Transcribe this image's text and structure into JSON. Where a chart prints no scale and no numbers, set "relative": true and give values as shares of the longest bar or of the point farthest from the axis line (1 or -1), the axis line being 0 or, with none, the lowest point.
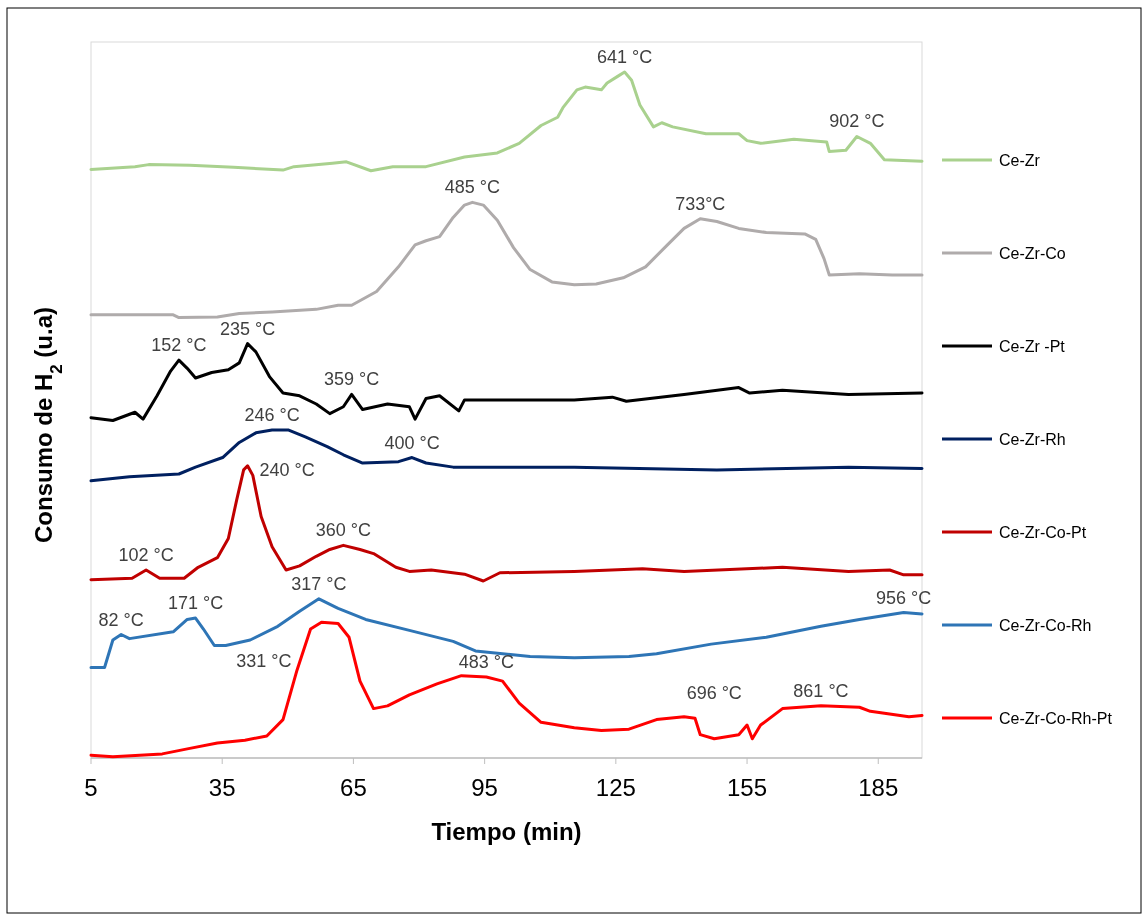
{
  "chart_data": {
    "type": "line",
    "relative": true,
    "xlabel": "Tiempo (min)",
    "ylabel": "Consumo de H$_{2}$ (u.a)",
    "xlim": [
      5,
      195
    ],
    "xticks": [
      5,
      35,
      65,
      95,
      125,
      155,
      185
    ],
    "grid": false,
    "legend": "right",
    "marker": "none",
    "line_style": "solid",
    "series": [
      {
        "name": "Ce-Zr",
        "color": "#a9d18e",
        "x": [
          5,
          15.05,
          18.19,
          27.6,
          37.6,
          48.9,
          51.4,
          60.2,
          63.4,
          69,
          74,
          81.6,
          90.4,
          97.9,
          102.9,
          107.9,
          111.7,
          112.9,
          116.1,
          118,
          121.7,
          123,
          125.5,
          127,
          128.6,
          130.5,
          133.6,
          135.5,
          138,
          145.6,
          153.1,
          155,
          158.1,
          165.7,
          173.2,
          173.8,
          177.6,
          180.1,
          183.2,
          186.4,
          195
        ],
        "values": [
          0.858,
          0.862,
          0.865,
          0.864,
          0.861,
          0.857,
          0.862,
          0.867,
          0.869,
          0.856,
          0.862,
          0.862,
          0.876,
          0.882,
          0.896,
          0.922,
          0.934,
          0.948,
          0.974,
          0.978,
          0.974,
          0.984,
          0.994,
          1.0,
          0.988,
          0.952,
          0.92,
          0.926,
          0.92,
          0.91,
          0.91,
          0.9,
          0.896,
          0.902,
          0.898,
          0.884,
          0.886,
          0.906,
          0.896,
          0.872,
          0.87
        ]
      },
      {
        "name": "Ce-Zr-Co",
        "color": "#afabab",
        "x": [
          5,
          23.8,
          25.1,
          33.9,
          38.9,
          46.4,
          56.5,
          61.5,
          64.6,
          70.3,
          75.3,
          79.1,
          81.6,
          84.7,
          87.8,
          90.4,
          92.2,
          94.7,
          97.9,
          101.6,
          105.4,
          110.4,
          115.5,
          120.5,
          126.7,
          131.8,
          136.8,
          140.6,
          144.3,
          148.1,
          153.1,
          159.4,
          168.2,
          170.7,
          172.6,
          173.8,
          180.7,
          188.2,
          195
        ],
        "values": [
          0.646,
          0.646,
          0.642,
          0.643,
          0.648,
          0.65,
          0.654,
          0.66,
          0.66,
          0.68,
          0.716,
          0.748,
          0.754,
          0.76,
          0.788,
          0.806,
          0.81,
          0.806,
          0.784,
          0.744,
          0.712,
          0.694,
          0.69,
          0.691,
          0.7,
          0.716,
          0.748,
          0.772,
          0.786,
          0.782,
          0.772,
          0.766,
          0.764,
          0.756,
          0.728,
          0.704,
          0.706,
          0.704,
          0.704
        ]
      },
      {
        "name": "Ce-Zr -Pt",
        "color": "#000000",
        "x": [
          5,
          10,
          15.05,
          16.9,
          20.1,
          23.2,
          25.1,
          27,
          28.9,
          32.6,
          36.4,
          38.9,
          40.8,
          42.7,
          45.8,
          48.9,
          52.7,
          56.5,
          59.6,
          62.7,
          64.6,
          67.1,
          72.8,
          77.8,
          79.1,
          81.6,
          84.7,
          89.1,
          90.4,
          102.9,
          115.5,
          124.2,
          127.4,
          140.6,
          153.1,
          155.6,
          163.1,
          178.2,
          195
        ],
        "values": [
          0.496,
          0.492,
          0.504,
          0.494,
          0.528,
          0.564,
          0.58,
          0.568,
          0.554,
          0.562,
          0.566,
          0.576,
          0.604,
          0.592,
          0.556,
          0.532,
          0.528,
          0.516,
          0.502,
          0.512,
          0.53,
          0.508,
          0.516,
          0.512,
          0.494,
          0.524,
          0.528,
          0.506,
          0.522,
          0.522,
          0.522,
          0.526,
          0.52,
          0.53,
          0.54,
          0.532,
          0.536,
          0.53,
          0.532
        ]
      },
      {
        "name": "Ce-Zr-Rh",
        "color": "#002060",
        "x": [
          5,
          13.8,
          25.1,
          28.9,
          35.1,
          38.9,
          42.7,
          46.4,
          50.2,
          54,
          59,
          62.7,
          67.1,
          75.3,
          78.4,
          81.6,
          87.8,
          115.5,
          148.1,
          178.2,
          195
        ],
        "values": [
          0.404,
          0.41,
          0.414,
          0.424,
          0.438,
          0.46,
          0.474,
          0.478,
          0.478,
          0.468,
          0.454,
          0.442,
          0.43,
          0.432,
          0.438,
          0.43,
          0.424,
          0.424,
          0.42,
          0.424,
          0.422
        ]
      },
      {
        "name": "Ce-Zr-Co-Pt",
        "color": "#c00000",
        "x": [
          5,
          14.4,
          17.6,
          20.7,
          26.3,
          29.5,
          33.9,
          36.4,
          38.3,
          39.9,
          40.8,
          42,
          43.9,
          46.4,
          49.6,
          52.7,
          56.5,
          59.6,
          62.7,
          66.5,
          69.6,
          74.7,
          77.8,
          82.8,
          90.4,
          94.7,
          98.5,
          115.5,
          131.1,
          140.6,
          163.1,
          178.2,
          187.6,
          190.8,
          195
        ],
        "values": [
          0.26,
          0.262,
          0.274,
          0.262,
          0.262,
          0.278,
          0.292,
          0.32,
          0.376,
          0.42,
          0.426,
          0.412,
          0.352,
          0.308,
          0.274,
          0.28,
          0.294,
          0.304,
          0.31,
          0.304,
          0.298,
          0.278,
          0.272,
          0.274,
          0.268,
          0.258,
          0.27,
          0.272,
          0.276,
          0.272,
          0.278,
          0.272,
          0.274,
          0.267,
          0.267
        ]
      },
      {
        "name": "Ce-Zr-Co-Rh",
        "color": "#2e75b6",
        "x": [
          5,
          8.1,
          10,
          11.9,
          13.8,
          23.8,
          27,
          28.9,
          30.7,
          33.2,
          35.8,
          41.4,
          47.7,
          52.7,
          57.1,
          61.5,
          67.8,
          77.8,
          87.8,
          92.9,
          105.4,
          115.5,
          128,
          134.3,
          146.8,
          159.4,
          171.9,
          180.7,
          190.8,
          195
        ],
        "values": [
          0.132,
          0.132,
          0.172,
          0.18,
          0.174,
          0.184,
          0.202,
          0.204,
          0.188,
          0.164,
          0.164,
          0.172,
          0.192,
          0.214,
          0.232,
          0.218,
          0.202,
          0.186,
          0.17,
          0.156,
          0.148,
          0.146,
          0.148,
          0.152,
          0.166,
          0.176,
          0.192,
          0.202,
          0.212,
          0.21
        ]
      },
      {
        "name": "Ce-Zr-Co-Rh-Pt",
        "color": "#ff0000",
        "x": [
          5,
          10,
          21.3,
          27.6,
          33.9,
          40.2,
          45.2,
          48.9,
          52.1,
          55.2,
          57.7,
          61.5,
          64,
          66.5,
          69.6,
          72.8,
          77.8,
          84.1,
          89.7,
          95.4,
          99.1,
          102.9,
          107.9,
          115.5,
          121.7,
          128,
          134.3,
          140.6,
          143.1,
          144.3,
          147.5,
          153.1,
          155,
          156.2,
          158.1,
          163.1,
          171.9,
          180.7,
          183.2,
          192,
          195
        ],
        "values": [
          0.004,
          0.002,
          0.006,
          0.014,
          0.022,
          0.026,
          0.032,
          0.056,
          0.128,
          0.188,
          0.198,
          0.196,
          0.176,
          0.112,
          0.072,
          0.076,
          0.092,
          0.108,
          0.12,
          0.118,
          0.112,
          0.08,
          0.052,
          0.044,
          0.04,
          0.042,
          0.056,
          0.06,
          0.058,
          0.034,
          0.028,
          0.034,
          0.048,
          0.028,
          0.048,
          0.072,
          0.076,
          0.074,
          0.068,
          0.06,
          0.062
        ]
      }
    ],
    "annotations": [
      {
        "text": "641 °C",
        "x": 127,
        "y": 1.0
      },
      {
        "text": "902 °C",
        "x": 180.1,
        "y": 0.906
      },
      {
        "text": "485 °C",
        "x": 92.2,
        "y": 0.81
      },
      {
        "text": "733°C",
        "x": 144.3,
        "y": 0.786
      },
      {
        "text": "152 °C",
        "x": 25.1,
        "y": 0.58
      },
      {
        "text": "235 °C",
        "x": 40.8,
        "y": 0.604
      },
      {
        "text": "359 °C",
        "x": 64.6,
        "y": 0.53
      },
      {
        "text": "246 °C",
        "x": 46.4,
        "y": 0.478
      },
      {
        "text": "400 °C",
        "x": 78.4,
        "y": 0.438
      },
      {
        "text": "240 °C",
        "x": 40.8,
        "y": 0.426
      },
      {
        "text": "102 °C",
        "x": 17.6,
        "y": 0.274
      },
      {
        "text": "360 °C",
        "x": 62.7,
        "y": 0.31
      },
      {
        "text": "82 °C",
        "x": 11.9,
        "y": 0.18
      },
      {
        "text": "171 °C",
        "x": 28.9,
        "y": 0.204
      },
      {
        "text": "317 °C",
        "x": 57.1,
        "y": 0.232
      },
      {
        "text": "956 °C",
        "x": 190.8,
        "y": 0.212
      },
      {
        "text": "331 °C",
        "x": 57.7,
        "y": 0.198
      },
      {
        "text": "483 °C",
        "x": 95.4,
        "y": 0.118
      },
      {
        "text": "696 °C",
        "x": 147.5,
        "y": 0.028
      },
      {
        "text": "861 °C",
        "x": 171.9,
        "y": 0.076
      }
    ]
  }
}
